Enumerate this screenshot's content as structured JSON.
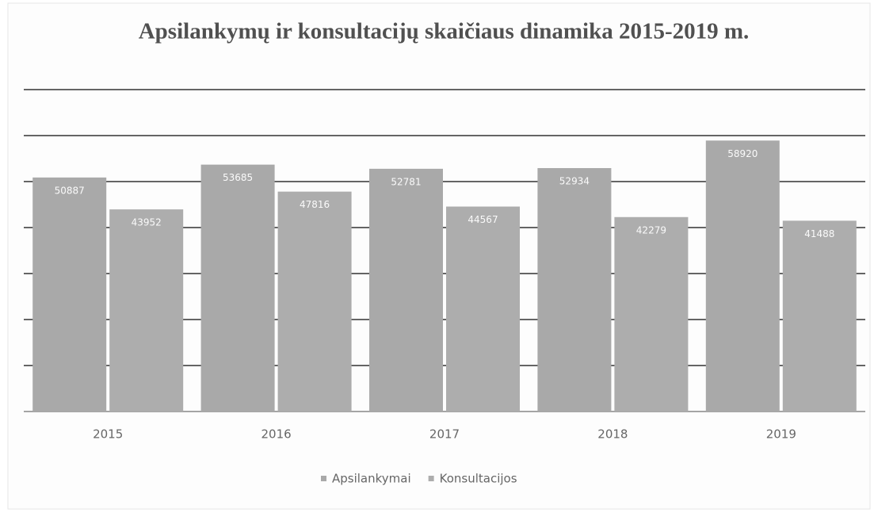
{
  "chart_data": {
    "type": "bar",
    "title": "Apsilankymų ir konsultacijų skaičiaus dinamika 2015-2019 m.",
    "categories": [
      "2015",
      "2016",
      "2017",
      "2018",
      "2019"
    ],
    "series": [
      {
        "name": "Apsilankymai",
        "color": "#a9a9a9",
        "values": [
          50887,
          53685,
          52781,
          52934,
          58920
        ]
      },
      {
        "name": "Konsultacijos",
        "color": "#adadad",
        "values": [
          43952,
          47816,
          44567,
          42279,
          41488
        ]
      }
    ],
    "ylim": [
      0,
      70000
    ],
    "yticks": [
      0,
      10000,
      20000,
      30000,
      40000,
      50000,
      60000,
      70000
    ],
    "grid": true
  }
}
